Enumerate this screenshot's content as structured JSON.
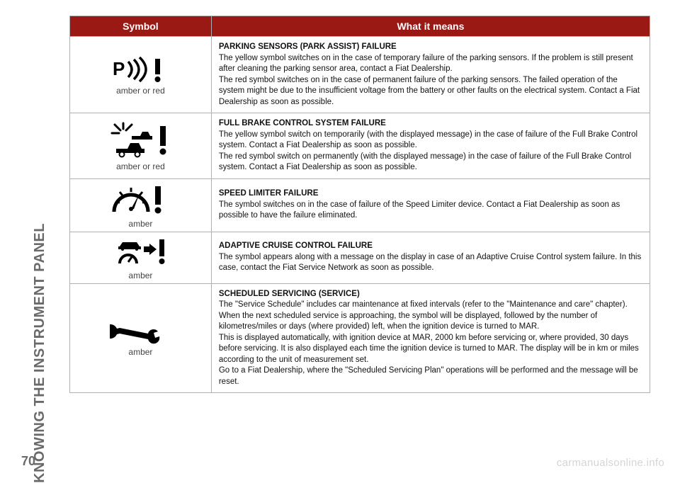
{
  "section_title": "KNOWING THE INSTRUMENT PANEL",
  "page_number": "70",
  "watermark": "carmanualsonline.info",
  "colors": {
    "header_bg": "#9b1915",
    "header_fg": "#ffffff",
    "border": "#b0b0b0",
    "side_text": "#6a6a6a",
    "watermark": "#d5d5d5",
    "body_text": "#111111",
    "caption": "#444444"
  },
  "table": {
    "header": {
      "symbol": "Symbol",
      "meaning": "What it means"
    },
    "rows": [
      {
        "icon_name": "parking-sensor-icon",
        "caption": "amber or red",
        "title": "PARKING SENSORS (PARK ASSIST) FAILURE",
        "body": "The yellow symbol switches on in the case of temporary failure of the parking sensors. If the problem is still present after cleaning the parking sensor area, contact a Fiat Dealership.\nThe red symbol switches on in the case of permanent failure of the parking sensors. The failed operation of the system might be due to the insufficient voltage from the battery or other faults on the electrical system. Contact a Fiat Dealership as soon as possible."
      },
      {
        "icon_name": "full-brake-control-icon",
        "caption": "amber or red",
        "title": "FULL BRAKE CONTROL SYSTEM FAILURE",
        "body": "The yellow symbol switch on temporarily (with the displayed message) in the case of failure of the Full Brake Control system. Contact a Fiat Dealership as soon as possible.\nThe red symbol switch on permanently (with the displayed message) in the case of failure of the Full Brake Control system. Contact a Fiat Dealership as soon as possible."
      },
      {
        "icon_name": "speed-limiter-icon",
        "caption": "amber",
        "title": "SPEED LIMITER FAILURE",
        "body": "The symbol switches on in the case of failure of the Speed Limiter device. Contact a Fiat Dealership as soon as possible to have the failure eliminated."
      },
      {
        "icon_name": "adaptive-cruise-icon",
        "caption": "amber",
        "title": "ADAPTIVE CRUISE CONTROL FAILURE",
        "body": "The symbol appears along with a message on the display in case of an Adaptive Cruise Control system failure. In this case, contact the Fiat Service Network as soon as possible."
      },
      {
        "icon_name": "scheduled-service-icon",
        "caption": "amber",
        "title": "SCHEDULED SERVICING (SERVICE)",
        "body": "The \"Service Schedule\" includes car maintenance at fixed intervals (refer to the \"Maintenance and care\" chapter).\nWhen the next scheduled service is approaching, the symbol will be displayed, followed by the number of kilometres/miles or days (where provided) left, when the ignition device is turned to MAR.\nThis is displayed automatically, with ignition device at MAR, 2000 km before servicing or, where provided, 30 days before servicing. It is also displayed each time the ignition device is turned to MAR. The display will be in km or miles according to the unit of measurement set.\nGo to a Fiat Dealership, where the \"Scheduled Servicing Plan\" operations will be performed and the message will be reset."
      }
    ]
  }
}
